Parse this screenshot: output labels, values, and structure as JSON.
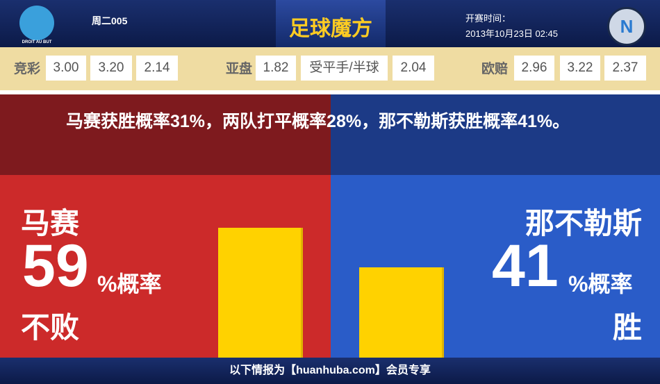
{
  "header": {
    "home_logo_text": "DROIT AU BUT",
    "match_id": "周二005",
    "brand": "足球魔方",
    "start_label": "开赛时间：",
    "start_time": "2013年10月23日 02:45",
    "away_logo_text": "N"
  },
  "odds": [
    {
      "label": "竞彩",
      "values": [
        "3.00",
        "3.20",
        "2.14"
      ]
    },
    {
      "label": "亚盘",
      "values": [
        "1.82",
        "受平手/半球",
        "2.04"
      ]
    },
    {
      "label": "欧赔",
      "values": [
        "2.96",
        "3.22",
        "2.37"
      ]
    }
  ],
  "summary": "马赛获胜概率31%，两队打平概率28%，那不勒斯获胜概率41%。",
  "panels": [
    {
      "team": "马赛",
      "percent": 59,
      "unit": "%概率",
      "outcome": "不败"
    },
    {
      "team": "那不勒斯",
      "percent": 41,
      "unit": "%概率",
      "outcome": "胜"
    }
  ],
  "footer": "以下情报为【huanhuba.com】会员专享"
}
